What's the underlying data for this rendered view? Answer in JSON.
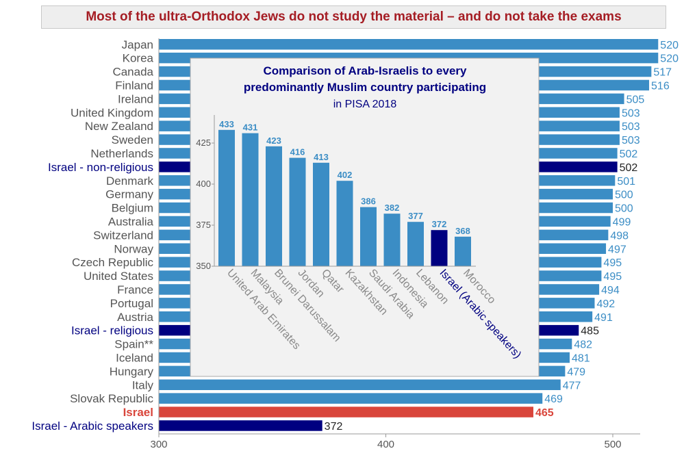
{
  "title": "Most of the ultra-Orthodox Jews do not study the material – and do not take the exams",
  "colors": {
    "main_bar": "#3b8dc5",
    "highlight_bar": "#000080",
    "israel_bar": "#d9453b",
    "main_label": "#555555",
    "highlight_label": "#000080",
    "israel_label": "#d9453b",
    "value_label": "#3b8dc5",
    "inset_title": "#000080",
    "inset_background": "#f2f2f2"
  },
  "chart_data": [
    {
      "type": "bar",
      "orientation": "horizontal",
      "title": "Most of the ultra-Orthodox Jews do not study the material – and do not take the exams",
      "categories": [
        "Japan",
        "Korea",
        "Canada",
        "Finland",
        "Ireland",
        "United Kingdom",
        "New Zealand",
        "Sweden",
        "Netherlands",
        "Israel - non-religious",
        "Denmark",
        "Germany",
        "Belgium",
        "Australia",
        "Switzerland",
        "Norway",
        "Czech Republic",
        "United States",
        "France",
        "Portugal",
        "Austria",
        "Israel - religious",
        "Spain**",
        "Iceland",
        "Hungary",
        "Italy",
        "Slovak Republic",
        "Israel",
        "Israel - Arabic speakers"
      ],
      "values": [
        520,
        520,
        517,
        516,
        505,
        503,
        503,
        503,
        502,
        502,
        501,
        500,
        500,
        499,
        498,
        497,
        495,
        495,
        494,
        492,
        491,
        485,
        482,
        481,
        479,
        477,
        469,
        465,
        372
      ],
      "highlight": [
        "normal",
        "normal",
        "normal",
        "normal",
        "normal",
        "normal",
        "normal",
        "normal",
        "normal",
        "highlight",
        "normal",
        "normal",
        "normal",
        "normal",
        "normal",
        "normal",
        "normal",
        "normal",
        "normal",
        "normal",
        "normal",
        "highlight",
        "normal",
        "normal",
        "normal",
        "normal",
        "normal",
        "israel",
        "highlight"
      ],
      "xlim": [
        300,
        521
      ],
      "xticks": [
        300,
        400,
        500
      ],
      "grid": false
    },
    {
      "type": "bar",
      "orientation": "vertical",
      "title_line1": "Comparison of Arab-Israelis to every",
      "title_line2": "predominantly Muslim country participating",
      "subtitle": "in PISA 2018",
      "categories": [
        "United Arab Emirates",
        "Malaysia",
        "Brunei Darussalam",
        "Jordan",
        "Qatar",
        "Kazakhstan",
        "Saudi Arabia",
        "Indonesia",
        "Lebanon",
        "Israel (Arabic speakers)",
        "Morocco"
      ],
      "values": [
        433,
        431,
        423,
        416,
        413,
        402,
        386,
        382,
        377,
        372,
        368
      ],
      "highlight": [
        "normal",
        "normal",
        "normal",
        "normal",
        "normal",
        "normal",
        "normal",
        "normal",
        "normal",
        "highlight",
        "normal"
      ],
      "ylim": [
        350,
        437
      ],
      "yticks": [
        350,
        375,
        400,
        425
      ],
      "grid": false
    }
  ]
}
